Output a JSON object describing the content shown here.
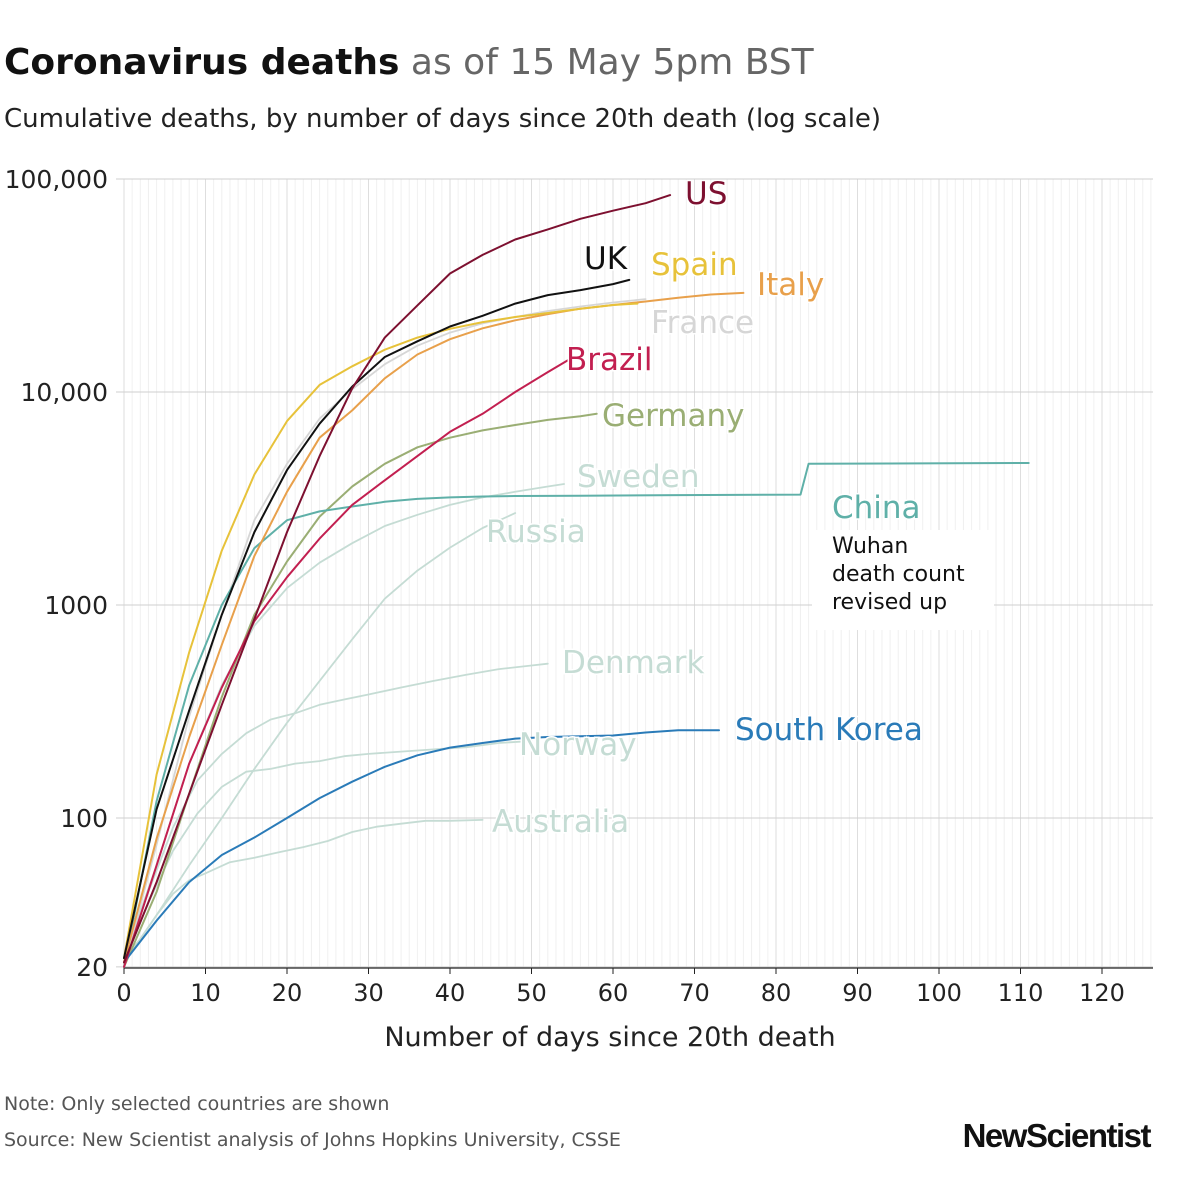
{
  "header": {
    "title_bold": "Coronavirus deaths",
    "title_rest": "as of 15 May 5pm BST",
    "subtitle": "Cumulative deaths, by number of days since 20th death (log scale)"
  },
  "footer": {
    "note": "Note: Only selected countries are shown",
    "source": "Source: New Scientist analysis of Johns Hopkins University, CSSE",
    "brand": "NewScientist"
  },
  "chart_data": {
    "type": "line",
    "title": "Coronavirus deaths as of 15 May 5pm BST",
    "subtitle": "Cumulative deaths, by number of days since 20th death (log scale)",
    "xlabel": "Number of days since 20th death",
    "ylabel": "",
    "y_scale": "log",
    "xlim": [
      0,
      126
    ],
    "ylim": [
      20,
      100000
    ],
    "x_ticks": [
      0,
      10,
      20,
      30,
      40,
      50,
      60,
      70,
      80,
      90,
      100,
      110,
      120
    ],
    "x_tick_labels": [
      "0",
      "10",
      "20",
      "30",
      "40",
      "50",
      "60",
      "70",
      "80",
      "90",
      "100",
      "110",
      "120"
    ],
    "y_ticks": [
      20,
      100,
      1000,
      10000,
      100000
    ],
    "y_tick_labels": [
      "20",
      "100",
      "1000",
      "10,000",
      "100,000"
    ],
    "grid": true,
    "legend": "direct labels at line ends",
    "series": [
      {
        "name": "Australia",
        "color": "#c5dcd4",
        "points": [
          [
            0,
            22
          ],
          [
            2,
            27
          ],
          [
            4,
            35
          ],
          [
            6,
            44
          ],
          [
            8,
            51
          ],
          [
            10,
            55
          ],
          [
            13,
            62
          ],
          [
            16,
            65
          ],
          [
            19,
            69
          ],
          [
            22,
            73
          ],
          [
            25,
            78
          ],
          [
            28,
            86
          ],
          [
            31,
            91
          ],
          [
            34,
            94
          ],
          [
            37,
            97
          ],
          [
            40,
            97
          ],
          [
            44,
            98
          ]
        ]
      },
      {
        "name": "Norway",
        "color": "#c5dcd4",
        "points": [
          [
            0,
            21
          ],
          [
            3,
            40
          ],
          [
            6,
            70
          ],
          [
            9,
            105
          ],
          [
            12,
            140
          ],
          [
            15,
            165
          ],
          [
            18,
            170
          ],
          [
            21,
            180
          ],
          [
            24,
            185
          ],
          [
            27,
            195
          ],
          [
            30,
            200
          ],
          [
            34,
            205
          ],
          [
            38,
            210
          ],
          [
            42,
            215
          ],
          [
            46,
            225
          ],
          [
            50,
            230
          ]
        ]
      },
      {
        "name": "Denmark",
        "color": "#c5dcd4",
        "points": [
          [
            0,
            21
          ],
          [
            3,
            45
          ],
          [
            6,
            90
          ],
          [
            9,
            150
          ],
          [
            12,
            200
          ],
          [
            15,
            250
          ],
          [
            18,
            290
          ],
          [
            21,
            310
          ],
          [
            24,
            340
          ],
          [
            27,
            360
          ],
          [
            30,
            380
          ],
          [
            34,
            410
          ],
          [
            38,
            440
          ],
          [
            42,
            470
          ],
          [
            46,
            500
          ],
          [
            50,
            520
          ],
          [
            52,
            530
          ]
        ]
      },
      {
        "name": "Russia",
        "color": "#c5dcd4",
        "points": [
          [
            0,
            21
          ],
          [
            4,
            35
          ],
          [
            8,
            60
          ],
          [
            12,
            100
          ],
          [
            16,
            170
          ],
          [
            20,
            280
          ],
          [
            24,
            440
          ],
          [
            28,
            690
          ],
          [
            32,
            1070
          ],
          [
            36,
            1450
          ],
          [
            40,
            1860
          ],
          [
            44,
            2300
          ],
          [
            48,
            2700
          ]
        ]
      },
      {
        "name": "Sweden",
        "color": "#c5dcd4",
        "points": [
          [
            0,
            22
          ],
          [
            4,
            60
          ],
          [
            8,
            180
          ],
          [
            12,
            420
          ],
          [
            16,
            800
          ],
          [
            20,
            1200
          ],
          [
            24,
            1580
          ],
          [
            28,
            1950
          ],
          [
            32,
            2350
          ],
          [
            36,
            2650
          ],
          [
            40,
            2950
          ],
          [
            44,
            3200
          ],
          [
            48,
            3400
          ],
          [
            52,
            3600
          ],
          [
            54,
            3700
          ]
        ]
      },
      {
        "name": "France",
        "color": "#d6d6d6",
        "points": [
          [
            0,
            20
          ],
          [
            4,
            75
          ],
          [
            8,
            300
          ],
          [
            12,
            900
          ],
          [
            16,
            2500
          ],
          [
            20,
            4600
          ],
          [
            24,
            7500
          ],
          [
            28,
            10300
          ],
          [
            32,
            13500
          ],
          [
            36,
            16500
          ],
          [
            40,
            19000
          ],
          [
            44,
            21000
          ],
          [
            48,
            22500
          ],
          [
            52,
            24000
          ],
          [
            56,
            25200
          ],
          [
            60,
            26300
          ],
          [
            64,
            27300
          ]
        ]
      },
      {
        "name": "Germany",
        "color": "#9aae74",
        "points": [
          [
            0,
            20
          ],
          [
            4,
            45
          ],
          [
            8,
            130
          ],
          [
            12,
            370
          ],
          [
            16,
            900
          ],
          [
            20,
            1600
          ],
          [
            24,
            2600
          ],
          [
            28,
            3600
          ],
          [
            32,
            4600
          ],
          [
            36,
            5500
          ],
          [
            40,
            6100
          ],
          [
            44,
            6600
          ],
          [
            48,
            7000
          ],
          [
            52,
            7400
          ],
          [
            56,
            7700
          ],
          [
            58,
            7900
          ]
        ]
      },
      {
        "name": "China",
        "color": "#5fb0a8",
        "points": [
          [
            0,
            20
          ],
          [
            4,
            120
          ],
          [
            8,
            420
          ],
          [
            12,
            1000
          ],
          [
            16,
            1850
          ],
          [
            20,
            2500
          ],
          [
            24,
            2750
          ],
          [
            28,
            2900
          ],
          [
            32,
            3050
          ],
          [
            36,
            3150
          ],
          [
            40,
            3200
          ],
          [
            44,
            3230
          ],
          [
            48,
            3250
          ],
          [
            56,
            3260
          ],
          [
            68,
            3280
          ],
          [
            83,
            3300
          ],
          [
            84,
            4600
          ],
          [
            111,
            4640
          ]
        ]
      },
      {
        "name": "South Korea",
        "color": "#2a7bb8",
        "points": [
          [
            0,
            21
          ],
          [
            4,
            33
          ],
          [
            8,
            50
          ],
          [
            12,
            67
          ],
          [
            16,
            81
          ],
          [
            20,
            100
          ],
          [
            24,
            124
          ],
          [
            28,
            148
          ],
          [
            32,
            174
          ],
          [
            36,
            197
          ],
          [
            40,
            214
          ],
          [
            44,
            225
          ],
          [
            48,
            236
          ],
          [
            52,
            240
          ],
          [
            56,
            242
          ],
          [
            60,
            244
          ],
          [
            64,
            252
          ],
          [
            68,
            258
          ],
          [
            73,
            258
          ]
        ]
      },
      {
        "name": "Brazil",
        "color": "#c21f50",
        "points": [
          [
            0,
            20
          ],
          [
            4,
            60
          ],
          [
            8,
            180
          ],
          [
            12,
            410
          ],
          [
            16,
            840
          ],
          [
            20,
            1350
          ],
          [
            24,
            2050
          ],
          [
            28,
            2950
          ],
          [
            32,
            3850
          ],
          [
            36,
            5000
          ],
          [
            40,
            6500
          ],
          [
            44,
            7900
          ],
          [
            48,
            10000
          ],
          [
            52,
            12400
          ],
          [
            55,
            14500
          ]
        ]
      },
      {
        "name": "Italy",
        "color": "#e8a04b",
        "points": [
          [
            0,
            21
          ],
          [
            4,
            80
          ],
          [
            8,
            240
          ],
          [
            12,
            650
          ],
          [
            16,
            1700
          ],
          [
            20,
            3400
          ],
          [
            24,
            6100
          ],
          [
            28,
            8200
          ],
          [
            32,
            11600
          ],
          [
            36,
            15000
          ],
          [
            40,
            17700
          ],
          [
            44,
            19900
          ],
          [
            48,
            21700
          ],
          [
            52,
            23200
          ],
          [
            56,
            24600
          ],
          [
            60,
            25600
          ],
          [
            64,
            26600
          ],
          [
            68,
            27700
          ],
          [
            72,
            28700
          ],
          [
            76,
            29200
          ]
        ]
      },
      {
        "name": "Spain",
        "color": "#e7c23a",
        "points": [
          [
            0,
            22
          ],
          [
            4,
            160
          ],
          [
            8,
            600
          ],
          [
            12,
            1800
          ],
          [
            16,
            4100
          ],
          [
            20,
            7300
          ],
          [
            24,
            10800
          ],
          [
            28,
            13200
          ],
          [
            32,
            15800
          ],
          [
            36,
            18000
          ],
          [
            40,
            19800
          ],
          [
            44,
            21300
          ],
          [
            48,
            22500
          ],
          [
            52,
            23500
          ],
          [
            56,
            24600
          ],
          [
            60,
            25600
          ],
          [
            63,
            26000
          ]
        ]
      },
      {
        "name": "UK",
        "color": "#111111",
        "points": [
          [
            0,
            22
          ],
          [
            4,
            110
          ],
          [
            8,
            320
          ],
          [
            12,
            900
          ],
          [
            16,
            2200
          ],
          [
            20,
            4300
          ],
          [
            24,
            7100
          ],
          [
            28,
            10600
          ],
          [
            32,
            14600
          ],
          [
            36,
            17300
          ],
          [
            40,
            20300
          ],
          [
            44,
            22800
          ],
          [
            48,
            26000
          ],
          [
            52,
            28500
          ],
          [
            56,
            30100
          ],
          [
            60,
            32100
          ],
          [
            62,
            33600
          ]
        ]
      },
      {
        "name": "US",
        "color": "#7d1030",
        "points": [
          [
            0,
            21
          ],
          [
            4,
            50
          ],
          [
            8,
            130
          ],
          [
            12,
            340
          ],
          [
            16,
            860
          ],
          [
            20,
            2200
          ],
          [
            24,
            5000
          ],
          [
            28,
            10400
          ],
          [
            32,
            18000
          ],
          [
            36,
            25500
          ],
          [
            40,
            36000
          ],
          [
            44,
            44000
          ],
          [
            48,
            52000
          ],
          [
            52,
            58000
          ],
          [
            56,
            65000
          ],
          [
            60,
            71000
          ],
          [
            64,
            77000
          ],
          [
            67,
            84000
          ]
        ]
      }
    ],
    "annotations": [
      {
        "text": "Wuhan",
        "series": "China"
      },
      {
        "text": "death count",
        "series": "China"
      },
      {
        "text": "revised up",
        "series": "China"
      }
    ]
  }
}
